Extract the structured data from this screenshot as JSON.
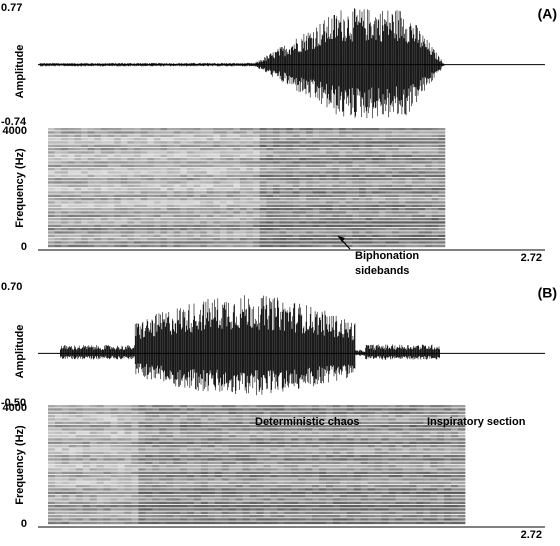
{
  "chart_data": [
    {
      "type": "waveform-spectrogram",
      "label": "(A)",
      "amplitude_label": "Amplitude",
      "frequency_label": "Frequency (Hz)",
      "ylim": [
        -0.74,
        0.77
      ],
      "yticks": [
        -0.74,
        0.77
      ],
      "freq_lim": [
        0,
        4000
      ],
      "freq_ticks": [
        0,
        4000
      ],
      "xlim": [
        0,
        2.72
      ],
      "xticks": [
        2.72
      ],
      "annotations": [
        "Biphonation",
        "sidebands"
      ]
    },
    {
      "type": "waveform-spectrogram",
      "label": "(B)",
      "amplitude_label": "Amplitude",
      "frequency_label": "Frequency (Hz)",
      "ylim": [
        -0.5,
        0.7
      ],
      "yticks": [
        {
          "value": -0.5,
          "label": "-0.50"
        },
        {
          "value": 0.7,
          "label": "0.70"
        }
      ],
      "freq_lim": [
        0,
        4000
      ],
      "freq_ticks": [
        0,
        4000
      ],
      "xlim": [
        0,
        2.72
      ],
      "xticks": [
        2.72
      ],
      "annotations": [
        "Deterministic chaos",
        "Inspiratory section"
      ]
    }
  ]
}
